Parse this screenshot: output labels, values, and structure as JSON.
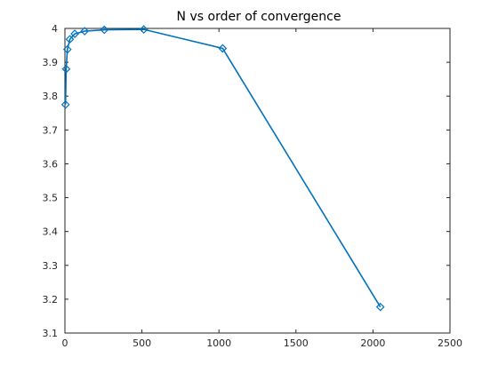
{
  "chart_data": {
    "type": "line",
    "title": "N vs order of convergence",
    "xlabel": "",
    "ylabel": "",
    "xlim": [
      0,
      2500
    ],
    "ylim": [
      3.1,
      4.0
    ],
    "xticks": [
      0,
      500,
      1000,
      1500,
      2000,
      2500
    ],
    "yticks": [
      3.1,
      3.2,
      3.3,
      3.4,
      3.5,
      3.6,
      3.7,
      3.8,
      3.9,
      4.0
    ],
    "xtick_labels": [
      "0",
      "500",
      "1000",
      "1500",
      "2000",
      "2500"
    ],
    "ytick_labels": [
      "3.1",
      "3.2",
      "3.3",
      "3.4",
      "3.5",
      "3.6",
      "3.7",
      "3.8",
      "3.9",
      "4"
    ],
    "grid": false,
    "legend": "none",
    "series": [
      {
        "marker": "diamond",
        "color": "#0072BD",
        "x": [
          4,
          8,
          16,
          32,
          64,
          128,
          256,
          512,
          1024,
          2048
        ],
        "y": [
          3.775,
          3.88,
          3.938,
          3.968,
          3.984,
          3.992,
          3.996,
          3.997,
          3.941,
          3.177
        ]
      }
    ]
  }
}
